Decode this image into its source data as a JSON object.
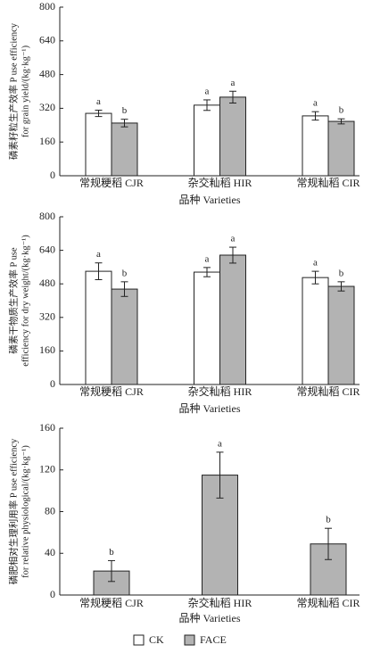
{
  "chart_data": [
    {
      "type": "bar",
      "ylabel": [
        "磷素籽粒生产效率 P use efficiency",
        "for grain yield/(kg·kg⁻¹)"
      ],
      "xlabel": "品种 Varieties",
      "categories": [
        "常规粳稻 CJR",
        "杂交籼稻 HIR",
        "常规籼稻 CIR"
      ],
      "series": [
        {
          "name": "CK",
          "color": "#ffffff",
          "values": [
            296,
            335,
            284
          ],
          "errors": [
            15,
            25,
            20
          ],
          "labels": [
            "a",
            "a",
            "a"
          ]
        },
        {
          "name": "FACE",
          "color": "#b3b3b3",
          "values": [
            250,
            373,
            258
          ],
          "errors": [
            18,
            28,
            12
          ],
          "labels": [
            "b",
            "a",
            "b"
          ]
        }
      ],
      "ylim": [
        0,
        800
      ],
      "yticks": [
        0,
        160,
        320,
        480,
        640,
        800
      ]
    },
    {
      "type": "bar",
      "ylabel": [
        "磷素干物质生产效率 P use",
        "efficiency for dry weight/(kg·kg⁻¹)"
      ],
      "xlabel": "品种 Varieties",
      "categories": [
        "常规粳稻 CJR",
        "杂交籼稻 HIR",
        "常规籼稻 CIR"
      ],
      "series": [
        {
          "name": "CK",
          "color": "#ffffff",
          "values": [
            540,
            536,
            510
          ],
          "errors": [
            40,
            22,
            30
          ],
          "labels": [
            "a",
            "a",
            "a"
          ]
        },
        {
          "name": "FACE",
          "color": "#b3b3b3",
          "values": [
            455,
            617,
            468
          ],
          "errors": [
            35,
            38,
            22
          ],
          "labels": [
            "b",
            "a",
            "b"
          ]
        }
      ],
      "ylim": [
        0,
        800
      ],
      "yticks": [
        0,
        160,
        320,
        480,
        640,
        800
      ]
    },
    {
      "type": "bar",
      "ylabel": [
        "磷肥相对生理利用率 P use efficiency",
        "for relative physiological/(kg·kg⁻¹)"
      ],
      "xlabel": "品种 Varieties",
      "categories": [
        "常规粳稻 CJR",
        "杂交籼稻 HIR",
        "常规籼稻 CIR"
      ],
      "series": [
        {
          "name": "FACE",
          "color": "#b3b3b3",
          "values": [
            23,
            115,
            49
          ],
          "errors": [
            10,
            22,
            15
          ],
          "labels": [
            "b",
            "a",
            "b"
          ]
        }
      ],
      "ylim": [
        0,
        160
      ],
      "yticks": [
        0,
        40,
        80,
        120,
        160
      ]
    }
  ]
}
